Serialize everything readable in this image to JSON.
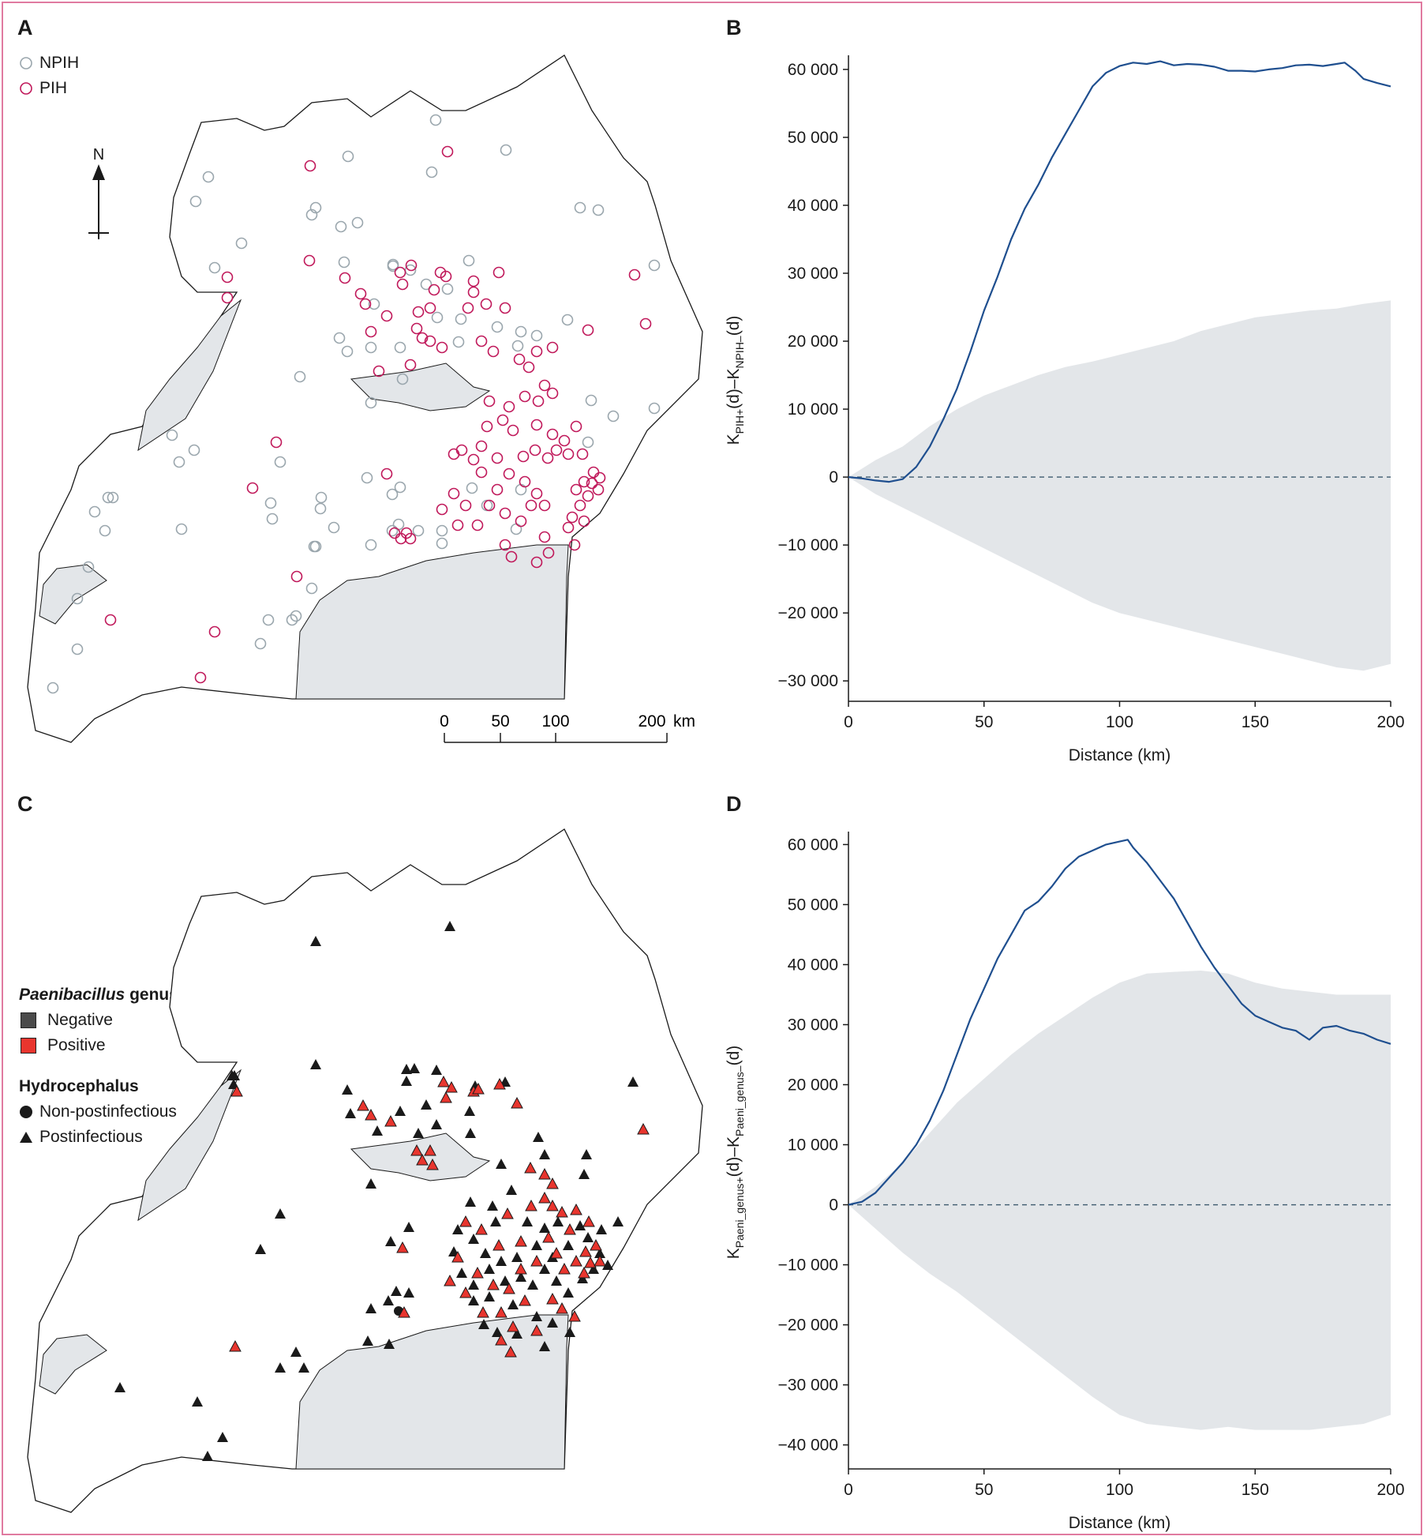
{
  "panels": {
    "a": "A",
    "b": "B",
    "c": "C",
    "d": "D"
  },
  "legend_a": {
    "npih": "NPIH",
    "pih": "PIH"
  },
  "north_label": "N",
  "scale_bar": {
    "ticks": [
      "0",
      "50",
      "100",
      "200"
    ],
    "unit": "km"
  },
  "legend_c": {
    "title_italic": "Paenibacillus",
    "title_rest": " genus",
    "negative": "Negative",
    "positive": "Positive",
    "hydro_title": "Hydrocephalus",
    "non_post": "Non-postinfectious",
    "post": "Postinfectious"
  },
  "colors": {
    "pih": "#c0185a",
    "npih": "#9aa6ad",
    "positive": "#e8352e",
    "negative": "#2a2a2a",
    "line": "#1f4f8f",
    "envelope": "#e3e6e9",
    "water": "#e3e6e9"
  },
  "chart_data": [
    {
      "panel": "B",
      "type": "line",
      "title": "",
      "xlabel": "Distance (km)",
      "ylabel_main": "K",
      "ylabel_sub1": "PIH+",
      "ylabel_mid": "(d)–K",
      "ylabel_sub2": "NPIH–",
      "ylabel_end": "(d)",
      "xlim": [
        0,
        200
      ],
      "ylim": [
        -33000,
        61500
      ],
      "xticks": [
        0,
        50,
        100,
        150,
        200
      ],
      "yticks": [
        -30000,
        -20000,
        -10000,
        0,
        10000,
        20000,
        30000,
        40000,
        50000,
        60000
      ],
      "ytick_labels": [
        "−30 000",
        "−20 000",
        "−10 000",
        "0",
        "10 000",
        "20 000",
        "30 000",
        "40 000",
        "50 000",
        "60 000"
      ],
      "series": [
        {
          "name": "observed",
          "x": [
            0,
            5,
            10,
            15,
            20,
            25,
            30,
            35,
            40,
            45,
            50,
            55,
            60,
            65,
            70,
            75,
            80,
            85,
            90,
            95,
            100,
            105,
            110,
            115,
            120,
            125,
            130,
            135,
            140,
            145,
            150,
            155,
            160,
            165,
            170,
            175,
            180,
            183,
            187,
            190,
            195,
            200
          ],
          "y": [
            0,
            -200,
            -500,
            -700,
            -300,
            1500,
            4500,
            8500,
            13000,
            18500,
            24500,
            29500,
            35000,
            39500,
            43000,
            47000,
            50500,
            54000,
            57500,
            59500,
            60500,
            61000,
            60800,
            61200,
            60600,
            60800,
            60700,
            60400,
            59800,
            59800,
            59700,
            60000,
            60200,
            60600,
            60700,
            60500,
            60800,
            61000,
            59800,
            58600,
            58000,
            57500
          ]
        }
      ],
      "envelope": {
        "x": [
          0,
          10,
          20,
          30,
          40,
          50,
          60,
          70,
          80,
          90,
          100,
          110,
          120,
          130,
          140,
          150,
          160,
          170,
          180,
          190,
          200
        ],
        "upper": [
          0,
          2500,
          4500,
          7500,
          10000,
          12000,
          13500,
          15000,
          16200,
          17000,
          18000,
          19000,
          20000,
          21500,
          22500,
          23500,
          24000,
          24500,
          24800,
          25500,
          26000
        ],
        "lower": [
          0,
          -2500,
          -4500,
          -6500,
          -8500,
          -10500,
          -12500,
          -14500,
          -16500,
          -18500,
          -20000,
          -21000,
          -22000,
          -23000,
          -24000,
          -25000,
          -26000,
          -27000,
          -28000,
          -28500,
          -27500
        ]
      },
      "reference_line": 0
    },
    {
      "panel": "D",
      "type": "line",
      "title": "",
      "xlabel": "Distance (km)",
      "ylabel_main": "K",
      "ylabel_sub1": "Paeni_genus+",
      "ylabel_mid": "(d)–K",
      "ylabel_sub2": "Paeni_genus–",
      "ylabel_end": "(d)",
      "xlim": [
        0,
        200
      ],
      "ylim": [
        -44000,
        61500
      ],
      "xticks": [
        0,
        50,
        100,
        150,
        200
      ],
      "yticks": [
        -40000,
        -30000,
        -20000,
        -10000,
        0,
        10000,
        20000,
        30000,
        40000,
        50000,
        60000
      ],
      "ytick_labels": [
        "−40 000",
        "−30 000",
        "−20 000",
        "−10 000",
        "0",
        "10 000",
        "20 000",
        "30 000",
        "40 000",
        "50 000",
        "60 000"
      ],
      "series": [
        {
          "name": "observed",
          "x": [
            0,
            5,
            10,
            15,
            20,
            25,
            30,
            35,
            40,
            45,
            50,
            55,
            60,
            65,
            70,
            75,
            80,
            85,
            90,
            95,
            100,
            103,
            105,
            110,
            115,
            120,
            125,
            130,
            135,
            140,
            145,
            150,
            155,
            160,
            165,
            170,
            175,
            180,
            185,
            190,
            195,
            200
          ],
          "y": [
            0,
            500,
            2000,
            4500,
            7000,
            10000,
            14000,
            19000,
            25000,
            31000,
            36000,
            41000,
            45000,
            49000,
            50500,
            53000,
            56000,
            58000,
            59000,
            60000,
            60500,
            60800,
            59500,
            57000,
            54000,
            51000,
            47000,
            43000,
            39500,
            36500,
            33500,
            31500,
            30500,
            29500,
            29000,
            27500,
            29500,
            29800,
            29000,
            28500,
            27500,
            26800
          ]
        }
      ],
      "envelope": {
        "x": [
          0,
          10,
          20,
          30,
          40,
          50,
          60,
          70,
          80,
          90,
          100,
          110,
          120,
          130,
          140,
          150,
          160,
          170,
          180,
          190,
          200
        ],
        "upper": [
          0,
          3000,
          7000,
          12000,
          17000,
          21000,
          25000,
          28500,
          31500,
          34500,
          37000,
          38500,
          38800,
          39000,
          38500,
          37000,
          36000,
          35500,
          35000,
          35000,
          35000
        ],
        "lower": [
          0,
          -4000,
          -8000,
          -11500,
          -14500,
          -18000,
          -21500,
          -25000,
          -28500,
          -32000,
          -35000,
          -36500,
          -37000,
          -37500,
          -37000,
          -37500,
          -37500,
          -37500,
          -37000,
          -36500,
          -35000
        ]
      },
      "reference_line": 0
    }
  ]
}
